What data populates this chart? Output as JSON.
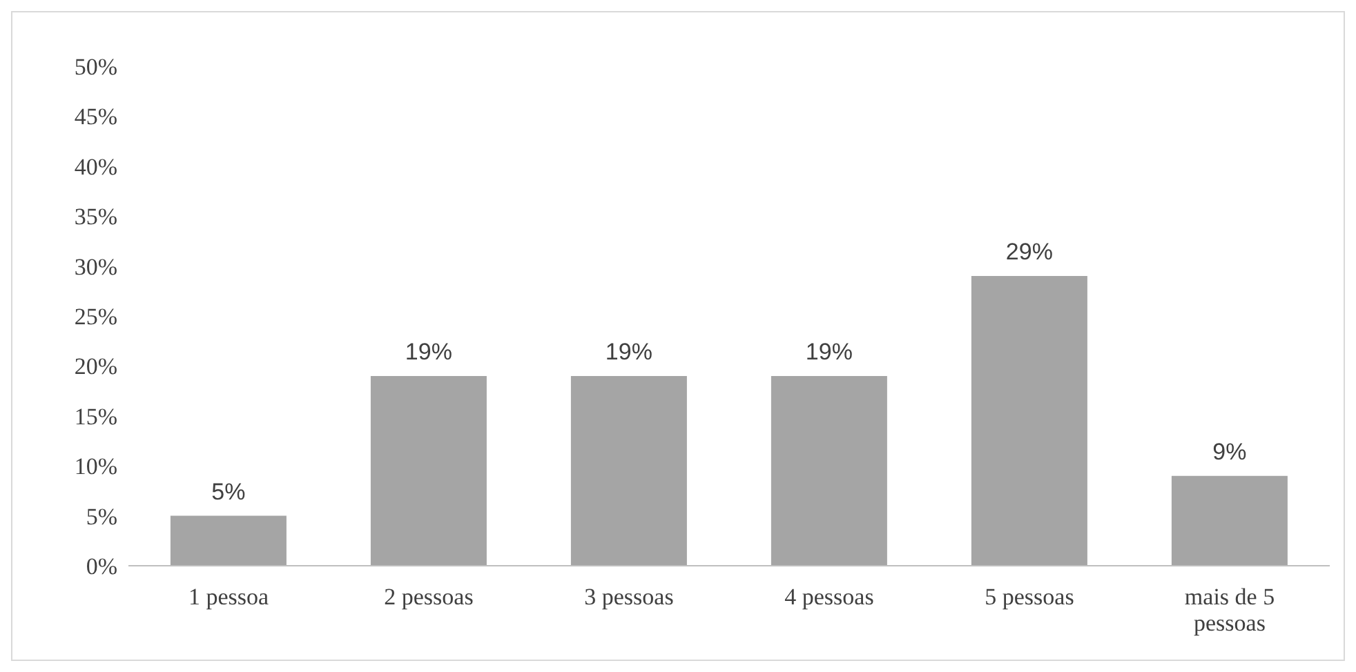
{
  "chart_data": {
    "type": "bar",
    "categories": [
      "1 pessoa",
      "2 pessoas",
      "3 pessoas",
      "4 pessoas",
      "5 pessoas",
      "mais de 5 pessoas"
    ],
    "values": [
      5,
      19,
      19,
      19,
      29,
      9
    ],
    "value_labels": [
      "5%",
      "19%",
      "19%",
      "19%",
      "29%",
      "9%"
    ],
    "color": "#a5a5a5",
    "ylim": [
      0,
      50
    ],
    "yticks": [
      {
        "value": 0,
        "label": "0%"
      },
      {
        "value": 5,
        "label": "5%"
      },
      {
        "value": 10,
        "label": "10%"
      },
      {
        "value": 15,
        "label": "15%"
      },
      {
        "value": 20,
        "label": "20%"
      },
      {
        "value": 25,
        "label": "25%"
      },
      {
        "value": 30,
        "label": "30%"
      },
      {
        "value": 35,
        "label": "35%"
      },
      {
        "value": 40,
        "label": "40%"
      },
      {
        "value": 45,
        "label": "45%"
      },
      {
        "value": 50,
        "label": "50%"
      }
    ],
    "grid": false,
    "legend": false
  }
}
